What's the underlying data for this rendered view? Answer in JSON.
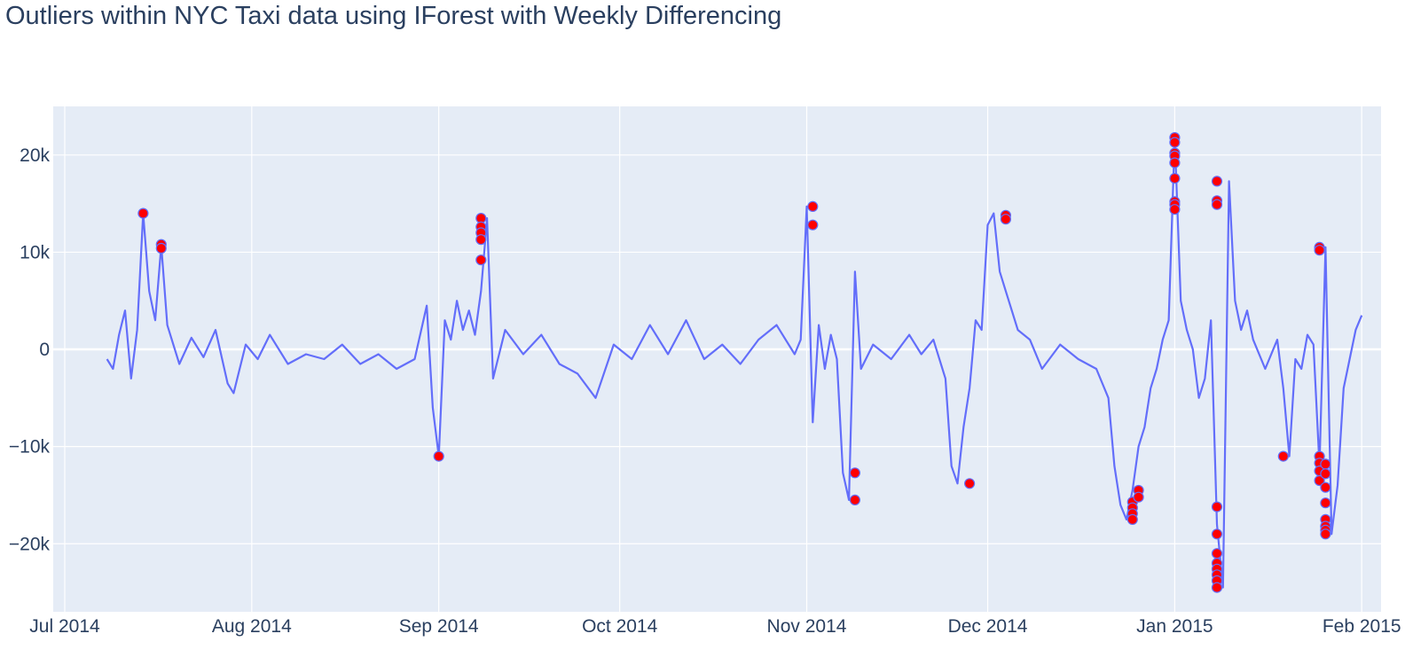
{
  "chart_data": {
    "type": "line",
    "title": "Outliers within NYC Taxi data using IForest with Weekly Differencing",
    "xlabel": "",
    "ylabel": "",
    "xlim": [
      "2014-07-01",
      "2015-02-02"
    ],
    "ylim": [
      -27000,
      25000
    ],
    "x_ticks": [
      {
        "date": "2014-07-01",
        "label": "Jul 2014"
      },
      {
        "date": "2014-08-01",
        "label": "Aug 2014"
      },
      {
        "date": "2014-09-01",
        "label": "Sep 2014"
      },
      {
        "date": "2014-10-01",
        "label": "Oct 2014"
      },
      {
        "date": "2014-11-01",
        "label": "Nov 2014"
      },
      {
        "date": "2014-12-01",
        "label": "Dec 2014"
      },
      {
        "date": "2015-01-01",
        "label": "Jan 2015"
      },
      {
        "date": "2015-02-01",
        "label": "Feb 2015"
      }
    ],
    "y_ticks": [
      {
        "value": 20000,
        "label": "20k"
      },
      {
        "value": 10000,
        "label": "10k"
      },
      {
        "value": 0,
        "label": "0"
      },
      {
        "value": -10000,
        "label": "−10k"
      },
      {
        "value": -20000,
        "label": "−20k"
      }
    ],
    "grid": true,
    "legend": "none",
    "colors": {
      "line": "#636efa",
      "outlier": "#ff0000",
      "plot_bg": "#e5ecf6",
      "grid": "#ffffff"
    },
    "series": [
      {
        "mode": "lines",
        "x": [
          "2014-07-08",
          "2014-07-09",
          "2014-07-10",
          "2014-07-11",
          "2014-07-12",
          "2014-07-13",
          "2014-07-14",
          "2014-07-15",
          "2014-07-16",
          "2014-07-17",
          "2014-07-18",
          "2014-07-19",
          "2014-07-20",
          "2014-07-22",
          "2014-07-24",
          "2014-07-26",
          "2014-07-28",
          "2014-07-29",
          "2014-07-31",
          "2014-08-02",
          "2014-08-04",
          "2014-08-07",
          "2014-08-10",
          "2014-08-13",
          "2014-08-16",
          "2014-08-19",
          "2014-08-22",
          "2014-08-25",
          "2014-08-28",
          "2014-08-30",
          "2014-08-31",
          "2014-09-01",
          "2014-09-02",
          "2014-09-03",
          "2014-09-04",
          "2014-09-05",
          "2014-09-06",
          "2014-09-07",
          "2014-09-08",
          "2014-09-09",
          "2014-09-10",
          "2014-09-12",
          "2014-09-15",
          "2014-09-18",
          "2014-09-21",
          "2014-09-24",
          "2014-09-27",
          "2014-09-30",
          "2014-10-03",
          "2014-10-06",
          "2014-10-09",
          "2014-10-12",
          "2014-10-15",
          "2014-10-18",
          "2014-10-21",
          "2014-10-24",
          "2014-10-27",
          "2014-10-30",
          "2014-10-31",
          "2014-11-01",
          "2014-11-02",
          "2014-11-03",
          "2014-11-04",
          "2014-11-05",
          "2014-11-06",
          "2014-11-07",
          "2014-11-08",
          "2014-11-09",
          "2014-11-10",
          "2014-11-12",
          "2014-11-15",
          "2014-11-18",
          "2014-11-20",
          "2014-11-22",
          "2014-11-24",
          "2014-11-25",
          "2014-11-26",
          "2014-11-27",
          "2014-11-28",
          "2014-11-29",
          "2014-11-30",
          "2014-12-01",
          "2014-12-02",
          "2014-12-03",
          "2014-12-04",
          "2014-12-05",
          "2014-12-06",
          "2014-12-08",
          "2014-12-10",
          "2014-12-13",
          "2014-12-16",
          "2014-12-19",
          "2014-12-21",
          "2014-12-22",
          "2014-12-23",
          "2014-12-24",
          "2014-12-25",
          "2014-12-26",
          "2014-12-27",
          "2014-12-28",
          "2014-12-29",
          "2014-12-30",
          "2014-12-31",
          "2015-01-01",
          "2015-01-02",
          "2015-01-03",
          "2015-01-04",
          "2015-01-05",
          "2015-01-06",
          "2015-01-07",
          "2015-01-08",
          "2015-01-09",
          "2015-01-10",
          "2015-01-11",
          "2015-01-12",
          "2015-01-13",
          "2015-01-14",
          "2015-01-16",
          "2015-01-18",
          "2015-01-19",
          "2015-01-20",
          "2015-01-21",
          "2015-01-22",
          "2015-01-23",
          "2015-01-24",
          "2015-01-25",
          "2015-01-26",
          "2015-01-27",
          "2015-01-28",
          "2015-01-29",
          "2015-01-30",
          "2015-01-31",
          "2015-02-01"
        ],
        "y": [
          -1000,
          -2000,
          1500,
          4000,
          -3000,
          2000,
          14000,
          6000,
          3000,
          10700,
          2500,
          500,
          -1500,
          1200,
          -800,
          2000,
          -3500,
          -4500,
          500,
          -1000,
          1500,
          -1500,
          -500,
          -1000,
          500,
          -1500,
          -500,
          -2000,
          -1000,
          4500,
          -6000,
          -11000,
          3000,
          1000,
          5000,
          2000,
          4000,
          1500,
          6000,
          13500,
          -3000,
          2000,
          -500,
          1500,
          -1500,
          -2500,
          -5000,
          500,
          -1000,
          2500,
          -500,
          3000,
          -1000,
          500,
          -1500,
          1000,
          2500,
          -500,
          1000,
          14700,
          -7500,
          2500,
          -2000,
          1500,
          -1000,
          -12700,
          -15500,
          8000,
          -2000,
          500,
          -1000,
          1500,
          -500,
          1000,
          -3000,
          -12000,
          -13800,
          -8000,
          -4000,
          3000,
          2000,
          12800,
          14000,
          8000,
          6000,
          4000,
          2000,
          1000,
          -2000,
          500,
          -1000,
          -2000,
          -5000,
          -12000,
          -16000,
          -17500,
          -14500,
          -10000,
          -8000,
          -4000,
          -2000,
          1000,
          3000,
          21800,
          5000,
          2000,
          0,
          -5000,
          -3000,
          3000,
          -18000,
          -24500,
          17300,
          5000,
          2000,
          4000,
          1000,
          -2000,
          1000,
          -4000,
          -11000,
          -1000,
          -2000,
          1500,
          500,
          -12000,
          10500,
          -19000,
          -14000,
          -4000,
          -1000,
          2000,
          3500
        ]
      },
      {
        "mode": "markers",
        "name": "",
        "x": [
          "2014-07-14",
          "2014-07-17",
          "2014-07-17",
          "2014-09-01",
          "2014-09-08",
          "2014-09-08",
          "2014-09-08",
          "2014-09-08",
          "2014-09-08",
          "2014-11-02",
          "2014-11-02",
          "2014-11-09",
          "2014-11-09",
          "2014-11-28",
          "2014-12-04",
          "2014-12-04",
          "2014-12-25",
          "2014-12-25",
          "2014-12-25",
          "2014-12-25",
          "2014-12-26",
          "2014-12-26",
          "2015-01-01",
          "2015-01-01",
          "2015-01-01",
          "2015-01-01",
          "2015-01-01",
          "2015-01-01",
          "2015-01-01",
          "2015-01-01",
          "2015-01-01",
          "2015-01-08",
          "2015-01-08",
          "2015-01-08",
          "2015-01-08",
          "2015-01-08",
          "2015-01-08",
          "2015-01-08",
          "2015-01-08",
          "2015-01-08",
          "2015-01-08",
          "2015-01-08",
          "2015-01-19",
          "2015-01-25",
          "2015-01-25",
          "2015-01-25",
          "2015-01-25",
          "2015-01-25",
          "2015-01-25",
          "2015-01-26",
          "2015-01-26",
          "2015-01-26",
          "2015-01-26",
          "2015-01-26",
          "2015-01-26",
          "2015-01-26",
          "2015-01-26"
        ],
        "y": [
          14000,
          10800,
          10400,
          -11000,
          13500,
          12600,
          12000,
          11300,
          9200,
          14700,
          12800,
          -12700,
          -15500,
          -13800,
          13800,
          13400,
          -15700,
          -16300,
          -16900,
          -17500,
          -14500,
          -15200,
          21800,
          21300,
          20200,
          19900,
          19200,
          17600,
          15200,
          14900,
          14400,
          17300,
          15300,
          14900,
          -16200,
          -19000,
          -21000,
          -22000,
          -22600,
          -23200,
          -23800,
          -24500,
          -11000,
          10500,
          10200,
          -11000,
          -11700,
          -12500,
          -13500,
          -11800,
          -12800,
          -14200,
          -15800,
          -17500,
          -18200,
          -18600,
          -19000
        ]
      }
    ]
  }
}
